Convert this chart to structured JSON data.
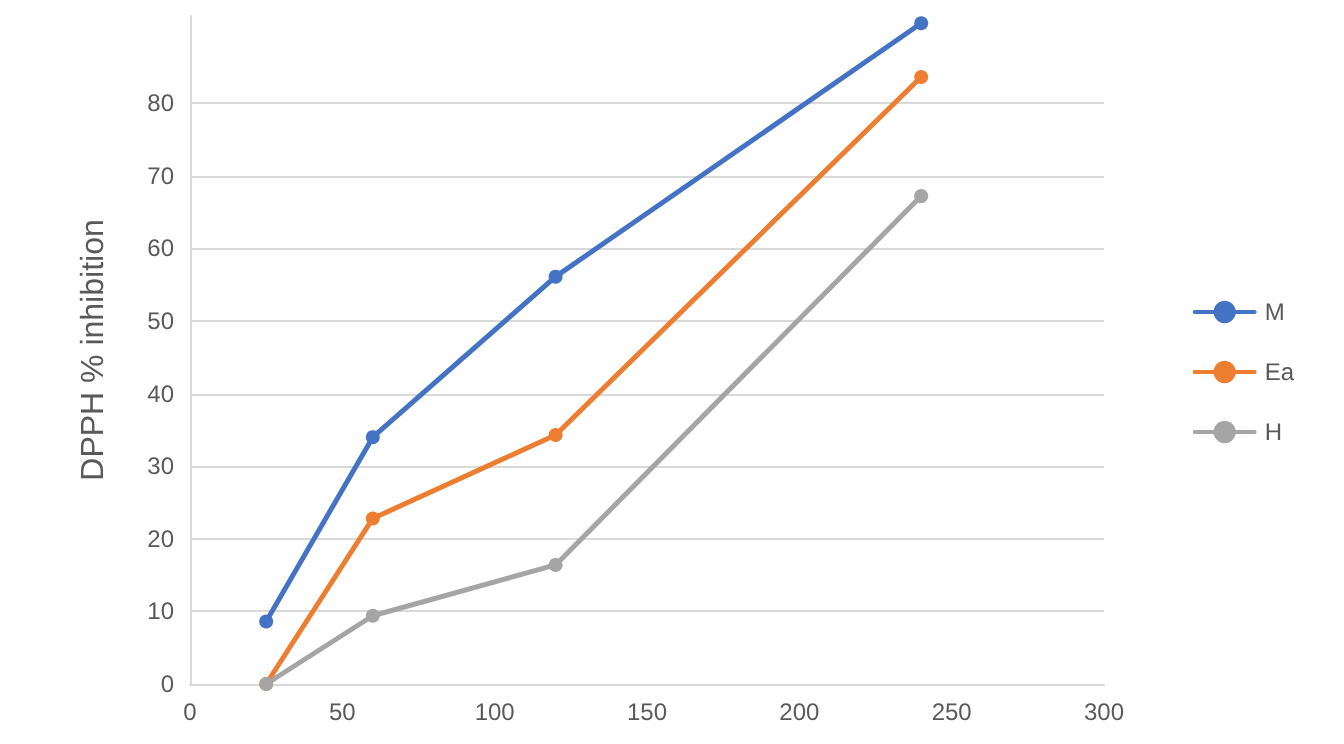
{
  "chart_data": {
    "type": "line",
    "ylabel": "DPPH % inhibition",
    "x": [
      25,
      60,
      120,
      240
    ],
    "series": [
      {
        "name": "M",
        "color": "#4472c4",
        "values": [
          8.6,
          34,
          56.1,
          91
        ]
      },
      {
        "name": "Ea",
        "color": "#ed7d31",
        "values": [
          0,
          22.8,
          34.3,
          83.6
        ]
      },
      {
        "name": "H",
        "color": "#a5a5a5",
        "values": [
          0,
          9.4,
          16.4,
          67.2
        ]
      }
    ],
    "xlim": [
      0,
      300
    ],
    "xticks": [
      0,
      50,
      100,
      150,
      200,
      250,
      300
    ],
    "ylim": [
      0,
      92
    ],
    "yticks": [
      0,
      10,
      20,
      30,
      40,
      50,
      60,
      70,
      80
    ],
    "grid": "y",
    "legend": "right",
    "marker": "circle",
    "line_style": "solid"
  }
}
